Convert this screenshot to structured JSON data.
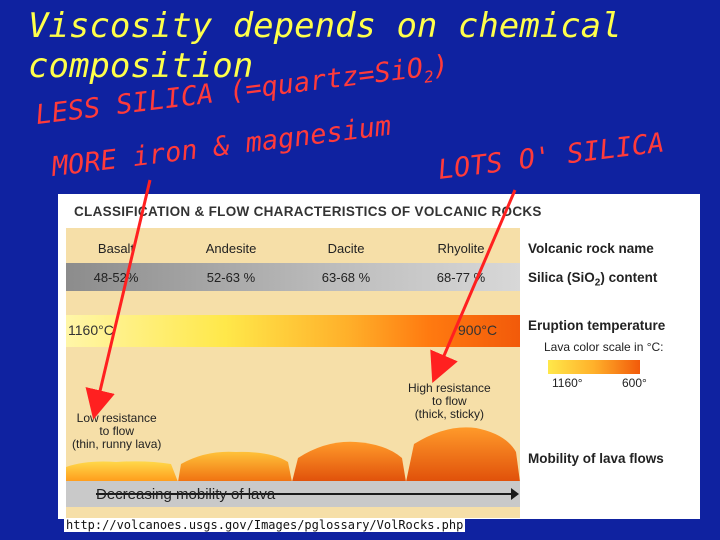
{
  "slide": {
    "title_line1": "Viscosity depends on chemical",
    "title_line2": "composition",
    "annotation_silica": "LESS SILICA (=quartz=SiO",
    "annotation_silica_sub": "2",
    "annotation_silica_end": ")",
    "annotation_iron": "MORE iron & magnesium",
    "annotation_lots": "LOTS O' SILICA",
    "source_url": "http://volcanoes.usgs.gov/Images/pglossary/VolRocks.php"
  },
  "figure": {
    "title": "CLASSIFICATION & FLOW CHARACTERISTICS OF VOLCANIC ROCKS",
    "rocks": [
      {
        "name": "Basalt",
        "silica": "48-52%"
      },
      {
        "name": "Andesite",
        "silica": "52-63 %"
      },
      {
        "name": "Dacite",
        "silica": "63-68 %"
      },
      {
        "name": "Rhyolite",
        "silica": "68-77 %"
      }
    ],
    "labels": {
      "rock_name": "Volcanic rock name",
      "silica_content": "Silica (SiO",
      "silica_content_sub": "2",
      "silica_content_end": ") content",
      "eruption_temp": "Eruption temperature",
      "lava_scale": "Lava color scale in °C:",
      "mobility": "Mobility of lava flows"
    },
    "temperature": {
      "low": "1160°C",
      "high": "900°C"
    },
    "lava_scale": {
      "hot": "1160°",
      "cool": "600°"
    },
    "low_resistance": [
      "Low resistance",
      "to flow",
      "(thin, runny lava)"
    ],
    "high_resistance": [
      "High resistance",
      "to flow",
      "(thick, sticky)"
    ],
    "mobility_arrow": "Decreasing mobility of lava"
  },
  "colors": {
    "background": "#0f22a0",
    "title": "#ffff4a",
    "annotation": "#ff3a3a",
    "panel": "#f6dfa8"
  }
}
